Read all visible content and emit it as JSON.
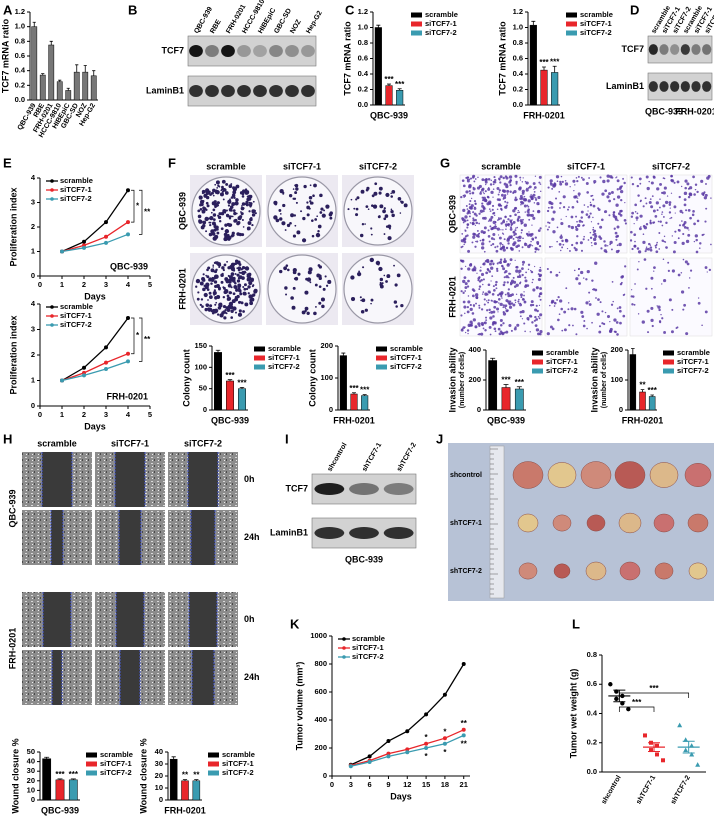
{
  "panel_labels": [
    "A",
    "B",
    "C",
    "D",
    "E",
    "F",
    "G",
    "H",
    "I",
    "J",
    "K",
    "L"
  ],
  "chart_data": [
    {
      "type": "bar",
      "ylabel": "TCF7 mRNA ratio",
      "categories": [
        "QBC-939",
        "RBE",
        "FRH-0201",
        "HCCC-9810",
        "HIBEpiC",
        "GBC-SD",
        "NOZ",
        "Hep-G2"
      ],
      "values": [
        1.0,
        0.34,
        0.75,
        0.25,
        0.13,
        0.38,
        0.38,
        0.33
      ],
      "errors": [
        0.06,
        0.02,
        0.05,
        0.02,
        0.03,
        0.1,
        0.09,
        0.07
      ],
      "color": "#777777",
      "ylim": [
        0,
        1.2
      ],
      "yticks": [
        {
          "value": 0,
          "label": "0.0"
        },
        0.2,
        0.4,
        0.6,
        0.8,
        {
          "value": 1,
          "label": "1.0"
        },
        1.2
      ]
    },
    {
      "type": "bar",
      "ylabel": "TCF7 mRNA ratio",
      "xlabel": "QBC-939",
      "series": [
        {
          "name": "scramble",
          "color": "#000000",
          "values": [
            1.0
          ],
          "errors": [
            0.03
          ]
        },
        {
          "name": "siTCF7-1",
          "color": "#e8262b",
          "values": [
            0.25
          ],
          "errors": [
            0.02
          ],
          "significance": "***"
        },
        {
          "name": "siTCF7-2",
          "color": "#3a9bb0",
          "values": [
            0.19
          ],
          "errors": [
            0.02
          ],
          "significance": "***"
        }
      ],
      "ylim": [
        0,
        1.2
      ],
      "yticks": [
        {
          "value": 0,
          "label": "0.0"
        },
        0.2,
        0.4,
        0.6,
        0.8,
        {
          "value": 1,
          "label": "1.0"
        },
        1.2
      ]
    },
    {
      "type": "bar",
      "ylabel": "TCF7 mRNA ratio",
      "xlabel": "FRH-0201",
      "series": [
        {
          "name": "scramble",
          "color": "#000000",
          "values": [
            1.03
          ],
          "errors": [
            0.05
          ]
        },
        {
          "name": "siTCF7-1",
          "color": "#e8262b",
          "values": [
            0.45
          ],
          "errors": [
            0.04
          ],
          "significance": "***"
        },
        {
          "name": "siTCF7-2",
          "color": "#3a9bb0",
          "values": [
            0.42
          ],
          "errors": [
            0.08
          ],
          "significance": "***"
        }
      ],
      "ylim": [
        0,
        1.2
      ],
      "yticks": [
        {
          "value": 0,
          "label": "0.0"
        },
        0.2,
        0.4,
        0.6,
        0.8,
        {
          "value": 1,
          "label": "1.0"
        },
        1.2
      ]
    },
    {
      "type": "line",
      "ylabel": "Proliferation index",
      "xlabel": "Days",
      "label": "QBC-939",
      "x": [
        1,
        2,
        3,
        4
      ],
      "series": [
        {
          "name": "scramble",
          "color": "#000000",
          "values": [
            1,
            1.4,
            2.2,
            3.5
          ]
        },
        {
          "name": "siTCF7-1",
          "color": "#e8262b",
          "values": [
            1,
            1.25,
            1.6,
            2.2
          ]
        },
        {
          "name": "siTCF7-2",
          "color": "#3a9bb0",
          "values": [
            1,
            1.15,
            1.35,
            1.7
          ]
        }
      ],
      "xlim": [
        0,
        5
      ],
      "xticks": [
        0,
        1,
        2,
        3,
        4,
        5
      ],
      "ylim": [
        0,
        4
      ],
      "yticks": [
        0,
        1,
        2,
        3,
        4
      ],
      "annotations": [
        "*",
        "**"
      ]
    },
    {
      "type": "line",
      "ylabel": "Proliferation index",
      "xlabel": "Days",
      "label": "FRH-0201",
      "x": [
        1,
        2,
        3,
        4
      ],
      "series": [
        {
          "name": "scramble",
          "color": "#000000",
          "values": [
            1,
            1.5,
            2.3,
            3.45
          ]
        },
        {
          "name": "siTCF7-1",
          "color": "#e8262b",
          "values": [
            1,
            1.3,
            1.7,
            2.05
          ]
        },
        {
          "name": "siTCF7-2",
          "color": "#3a9bb0",
          "values": [
            1,
            1.2,
            1.45,
            1.75
          ]
        }
      ],
      "xlim": [
        0,
        5
      ],
      "xticks": [
        0,
        1,
        2,
        3,
        4,
        5
      ],
      "ylim": [
        0,
        4
      ],
      "yticks": [
        0,
        1,
        2,
        3,
        4
      ],
      "annotations": [
        "*",
        "**"
      ]
    },
    {
      "type": "bar",
      "ylabel": "Colony count",
      "xlabel": "QBC-939",
      "series": [
        {
          "name": "scramble",
          "color": "#000000",
          "values": [
            135
          ],
          "errors": [
            5
          ]
        },
        {
          "name": "siTCF7-1",
          "color": "#e8262b",
          "values": [
            68
          ],
          "errors": [
            3
          ],
          "significance": "***"
        },
        {
          "name": "siTCF7-2",
          "color": "#3a9bb0",
          "values": [
            50
          ],
          "errors": [
            3
          ],
          "significance": "***"
        }
      ],
      "ylim": [
        0,
        150
      ],
      "yticks": [
        0,
        50,
        100,
        150
      ]
    },
    {
      "type": "bar",
      "ylabel": "Colony count",
      "xlabel": "FRH-0201",
      "series": [
        {
          "name": "scramble",
          "color": "#000000",
          "values": [
            170
          ],
          "errors": [
            8
          ]
        },
        {
          "name": "siTCF7-1",
          "color": "#e8262b",
          "values": [
            50
          ],
          "errors": [
            4
          ],
          "significance": "***"
        },
        {
          "name": "siTCF7-2",
          "color": "#3a9bb0",
          "values": [
            45
          ],
          "errors": [
            3
          ],
          "significance": "***"
        }
      ],
      "ylim": [
        0,
        200
      ],
      "yticks": [
        0,
        100,
        200
      ]
    },
    {
      "type": "bar",
      "ylabel": "Invasion ability",
      "ylabel2": "(number of cells)",
      "xlabel": "QBC-939",
      "series": [
        {
          "name": "scramble",
          "color": "#000000",
          "values": [
            330
          ],
          "errors": [
            15
          ]
        },
        {
          "name": "siTCF7-1",
          "color": "#e8262b",
          "values": [
            150
          ],
          "errors": [
            20
          ],
          "significance": "***"
        },
        {
          "name": "siTCF7-2",
          "color": "#3a9bb0",
          "values": [
            140
          ],
          "errors": [
            15
          ],
          "significance": "***"
        }
      ],
      "ylim": [
        0,
        400
      ],
      "yticks": [
        0,
        200,
        400
      ]
    },
    {
      "type": "bar",
      "ylabel": "Invasion ability",
      "ylabel2": "(number of cells)",
      "xlabel": "FRH-0201",
      "series": [
        {
          "name": "scramble",
          "color": "#000000",
          "values": [
            185
          ],
          "errors": [
            20
          ]
        },
        {
          "name": "siTCF7-1",
          "color": "#e8262b",
          "values": [
            60
          ],
          "errors": [
            8
          ],
          "significance": "**"
        },
        {
          "name": "siTCF7-2",
          "color": "#3a9bb0",
          "values": [
            45
          ],
          "errors": [
            5
          ],
          "significance": "***"
        }
      ],
      "ylim": [
        0,
        200
      ],
      "yticks": [
        0,
        100,
        200
      ]
    },
    {
      "type": "bar",
      "ylabel": "Wound closure %",
      "xlabel": "QBC-939",
      "series": [
        {
          "name": "scramble",
          "color": "#000000",
          "values": [
            43
          ],
          "errors": [
            1.5
          ]
        },
        {
          "name": "siTCF7-1",
          "color": "#e8262b",
          "values": [
            21
          ],
          "errors": [
            1
          ],
          "significance": "***"
        },
        {
          "name": "siTCF7-2",
          "color": "#3a9bb0",
          "values": [
            21
          ],
          "errors": [
            1
          ],
          "significance": "***"
        }
      ],
      "ylim": [
        0,
        50
      ],
      "yticks": [
        0,
        10,
        20,
        30,
        40,
        50
      ]
    },
    {
      "type": "bar",
      "ylabel": "Wound closure %",
      "xlabel": "FRH-0201",
      "series": [
        {
          "name": "scramble",
          "color": "#000000",
          "values": [
            34
          ],
          "errors": [
            2
          ]
        },
        {
          "name": "siTCF7-1",
          "color": "#e8262b",
          "values": [
            16
          ],
          "errors": [
            1
          ],
          "significance": "**"
        },
        {
          "name": "siTCF7-2",
          "color": "#3a9bb0",
          "values": [
            16
          ],
          "errors": [
            1
          ],
          "significance": "**"
        }
      ],
      "ylim": [
        0,
        40
      ],
      "yticks": [
        0,
        10,
        20,
        30,
        40
      ]
    },
    {
      "type": "line",
      "ylabel": "Tumor volume (mm³)",
      "xlabel": "Days",
      "x": [
        3,
        6,
        9,
        12,
        15,
        18,
        21
      ],
      "series": [
        {
          "name": "scramble",
          "color": "#000000",
          "values": [
            80,
            140,
            250,
            320,
            440,
            580,
            800
          ]
        },
        {
          "name": "siTCF7-1",
          "color": "#e8262b",
          "values": [
            75,
            110,
            160,
            190,
            230,
            270,
            330
          ],
          "marks": [
            {
              "x": 15,
              "text": "*"
            },
            {
              "x": 18,
              "text": "*"
            },
            {
              "x": 21,
              "text": "**"
            }
          ]
        },
        {
          "name": "siTCF7-2",
          "color": "#3a9bb0",
          "values": [
            70,
            100,
            140,
            170,
            200,
            230,
            290
          ],
          "marks": [
            {
              "x": 15,
              "text": "*"
            },
            {
              "x": 18,
              "text": "*"
            },
            {
              "x": 21,
              "text": "**"
            }
          ]
        }
      ],
      "xlim": [
        0,
        22
      ],
      "xticks": [
        0,
        3,
        6,
        9,
        12,
        15,
        18,
        21
      ],
      "ylim": [
        0,
        1000
      ],
      "yticks": [
        0,
        200,
        400,
        600,
        800,
        1000
      ]
    },
    {
      "type": "strip",
      "ylabel": "Tumor wet weight (g)",
      "categories": [
        "shcontrol",
        "shTCF7-1",
        "shTCF7-2"
      ],
      "groups": [
        {
          "color": "#000000",
          "marker": "circle",
          "values": [
            0.6,
            0.55,
            0.52,
            0.5,
            0.47,
            0.43
          ],
          "mean": 0.52,
          "sem": 0.04
        },
        {
          "color": "#e8262b",
          "marker": "square",
          "values": [
            0.25,
            0.2,
            0.18,
            0.15,
            0.12,
            0.08
          ],
          "mean": 0.17,
          "sem": 0.03
        },
        {
          "color": "#3a9bb0",
          "marker": "triangle",
          "values": [
            0.32,
            0.22,
            0.18,
            0.15,
            0.12,
            0.05
          ],
          "mean": 0.17,
          "sem": 0.04
        }
      ],
      "ylim": [
        0,
        0.8
      ],
      "yticks": [
        {
          "value": 0,
          "label": "0.0"
        },
        0.2,
        0.4,
        0.6,
        0.8
      ],
      "annotations": [
        "***",
        "***"
      ]
    }
  ],
  "blots": [
    {
      "lanes": [
        "QBC-939",
        "RBE",
        "FRH-0201",
        "HCCC-9810",
        "HIBEpiC",
        "GBC-SD",
        "NOZ",
        "Hep-G2"
      ],
      "rows": [
        "TCF7",
        "LaminB1"
      ]
    },
    {
      "lanes": [
        "scramble",
        "siTCF7-1",
        "siTCF7-2",
        "scramble",
        "siTCF7-1",
        "siTCF7-2"
      ],
      "rows": [
        "TCF7",
        "LaminB1"
      ],
      "groups": [
        "QBC-939",
        "FRH-0201"
      ]
    },
    {
      "lanes": [
        "shcontrol",
        "shTCF7-1",
        "shTCF7-2"
      ],
      "rows": [
        "TCF7",
        "LaminB1"
      ],
      "groups": [
        "QBC-939"
      ]
    }
  ],
  "photos": [
    {
      "columns": [
        "scramble",
        "siTCF7-1",
        "siTCF7-2"
      ],
      "rows": [
        "QBC-939",
        "FRH-0201"
      ]
    },
    {
      "columns": [
        "scramble",
        "siTCF7-1",
        "siTCF7-2"
      ],
      "rows": [
        "QBC-939",
        "FRH-0201"
      ]
    },
    {
      "columns": [
        "scramble",
        "siTCF7-1",
        "siTCF7-2"
      ],
      "rows": [
        "QBC-939",
        "FRH-0201"
      ],
      "times": [
        "0h",
        "24h",
        "0h",
        "24h"
      ]
    },
    {
      "rows": [
        "shcontrol",
        "shTCF7-1",
        "shTCF7-2"
      ]
    }
  ]
}
